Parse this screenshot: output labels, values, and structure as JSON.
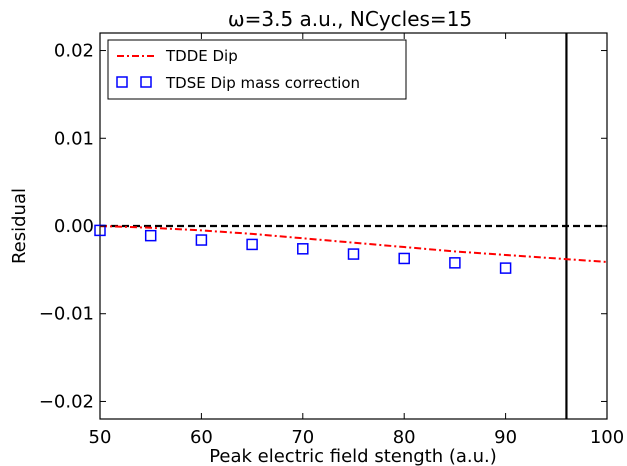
{
  "chart_data": {
    "type": "scatter",
    "title": "ω=3.5 a.u., NCycles=15",
    "xlabel": "Peak electric field stength  (a.u.)",
    "ylabel": "Residual",
    "xlim": [
      50,
      100
    ],
    "ylim": [
      -0.022,
      0.022
    ],
    "xticks": [
      50,
      60,
      70,
      80,
      90,
      100
    ],
    "xtick_labels": [
      "50",
      "60",
      "70",
      "80",
      "90",
      "100"
    ],
    "yticks": [
      -0.02,
      -0.01,
      0.0,
      0.01,
      0.02
    ],
    "ytick_labels": [
      "−0.02",
      "−0.01",
      "0.00",
      "0.01",
      "0.02"
    ],
    "grid": false,
    "legend_position": "top-left",
    "series": [
      {
        "name": "TDDE Dip",
        "style": "dash-dot line",
        "color": "#ff0000",
        "x": [
          50,
          55,
          60,
          65,
          70,
          75,
          80,
          85,
          90,
          95,
          100
        ],
        "y": [
          0.0,
          -0.0002,
          -0.0005,
          -0.0009,
          -0.0014,
          -0.0019,
          -0.0024,
          -0.0029,
          -0.0033,
          -0.0037,
          -0.0041
        ]
      },
      {
        "name": "TDSE Dip mass correction",
        "style": "open square markers",
        "color": "#0000ff",
        "x": [
          50,
          55,
          60,
          65,
          70,
          75,
          80,
          85,
          90
        ],
        "y": [
          -0.0005,
          -0.0011,
          -0.0016,
          -0.0021,
          -0.0026,
          -0.0032,
          -0.0037,
          -0.0042,
          -0.0048
        ]
      }
    ],
    "reference_lines": {
      "horizontal_y": 0.0,
      "horizontal_style": "black dashed",
      "vertical_x": 96,
      "vertical_style": "black solid"
    }
  }
}
